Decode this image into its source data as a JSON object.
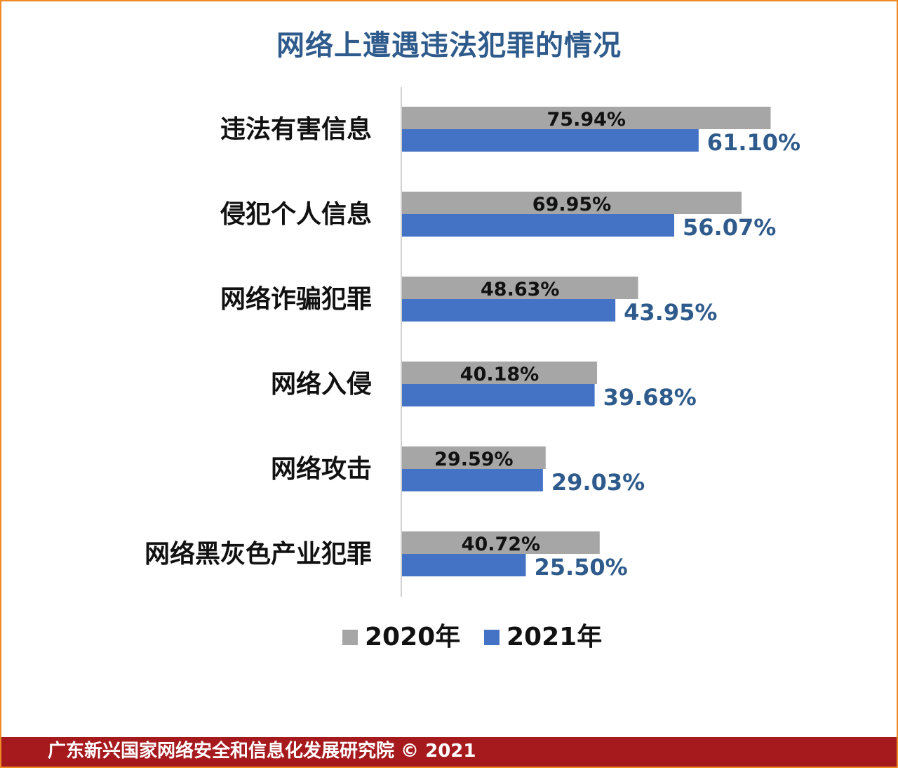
{
  "title": "网络上遭遇违法犯罪的情况",
  "footer": "广东新兴国家网络安全和信息化发展研究院 © 2021",
  "colors": {
    "series_2020": "#a6a6a6",
    "series_2021": "#4472c4",
    "label_2021": "#2e5b8c",
    "title": "#2e5b8c",
    "footer_bg": "#a61a1e",
    "border": "#f08a24"
  },
  "chart_data": {
    "type": "bar",
    "orientation": "horizontal",
    "title": "网络上遭遇违法犯罪的情况",
    "categories": [
      "违法有害信息",
      "侵犯个人信息",
      "网络诈骗犯罪",
      "网络入侵",
      "网络攻击",
      "网络黑灰色产业犯罪"
    ],
    "series": [
      {
        "name": "2020年",
        "values": [
          75.94,
          69.95,
          48.63,
          40.18,
          29.59,
          40.72
        ],
        "labels": [
          "75.94%",
          "69.95%",
          "48.63%",
          "40.18%",
          "29.59%",
          "40.72%"
        ]
      },
      {
        "name": "2021年",
        "values": [
          61.1,
          56.07,
          43.95,
          39.68,
          29.03,
          25.5
        ],
        "labels": [
          "61.10%",
          "56.07%",
          "43.95%",
          "39.68%",
          "29.03%",
          "25.50%"
        ]
      }
    ],
    "xlim": [
      0,
      80
    ],
    "grid": false,
    "legend_position": "bottom"
  }
}
